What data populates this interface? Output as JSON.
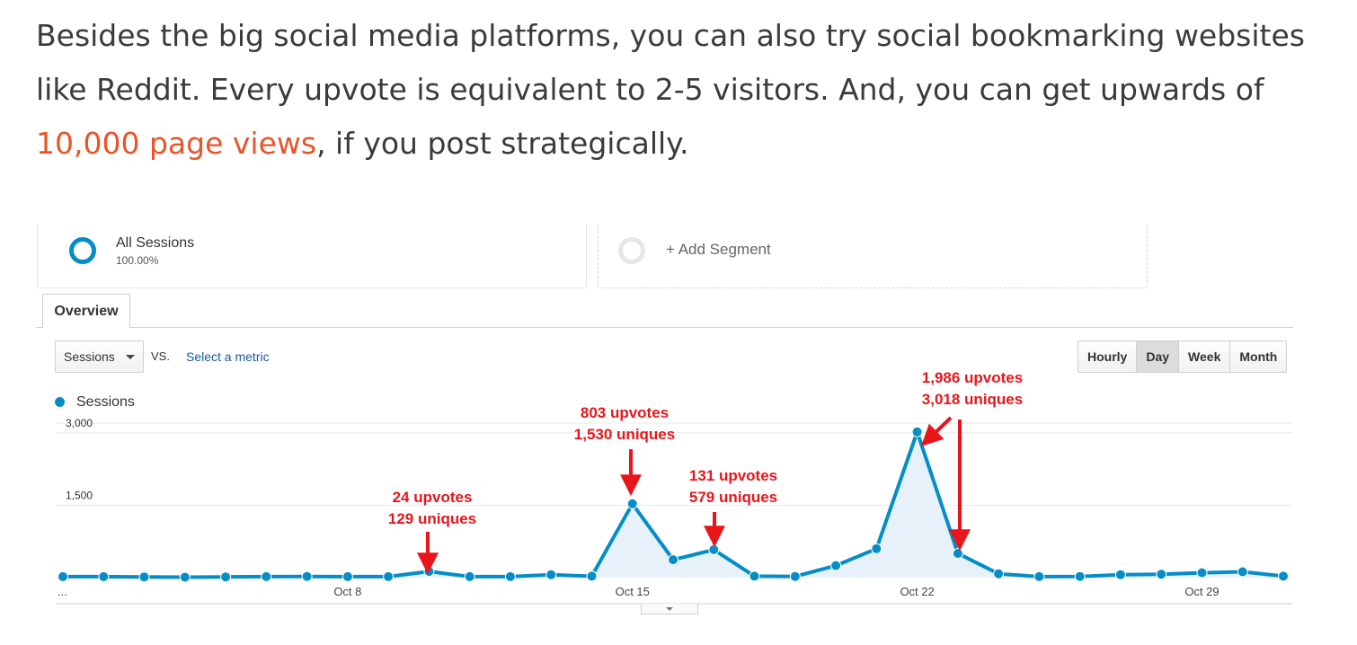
{
  "article": {
    "line1": "Besides the big social media platforms, you can also try social bookmarking websites",
    "line2": "like Reddit. Every upvote is equivalent to 2-5 visitors. And, you can get upwards of",
    "link_text": "10,000 page views",
    "line3_rest": ", if you post strategically."
  },
  "segments": {
    "primary_name": "All Sessions",
    "primary_pct": "100.00%",
    "add_label": "+ Add Segment"
  },
  "tabs": {
    "overview": "Overview"
  },
  "controls": {
    "metric": "Sessions",
    "vs": "VS.",
    "select_metric": "Select a metric",
    "time_buttons": [
      "Hourly",
      "Day",
      "Week",
      "Month"
    ],
    "active_time": "Day"
  },
  "colors": {
    "line": "#058dc7",
    "area": "#e6f1f9",
    "annotation": "#e8161b",
    "link": "#e8552b"
  },
  "chart_data": {
    "type": "line",
    "legend": "Sessions",
    "ylim": [
      0,
      3200
    ],
    "yticks": [
      3000,
      1500
    ],
    "ytick_labels": [
      "3,000",
      "1,500"
    ],
    "xtick_labels": [
      "...",
      "Oct 8",
      "Oct 15",
      "Oct 22",
      "Oct 29"
    ],
    "xtick_index": [
      0,
      7,
      14,
      21,
      28
    ],
    "grid": true,
    "series": [
      {
        "name": "Sessions",
        "values": [
          20,
          20,
          15,
          10,
          15,
          20,
          25,
          20,
          20,
          129,
          20,
          20,
          60,
          30,
          1530,
          370,
          579,
          30,
          25,
          250,
          600,
          3018,
          500,
          80,
          20,
          25,
          60,
          70,
          100,
          120,
          30
        ]
      }
    ],
    "annotations": [
      {
        "line1": "24 upvotes",
        "line2": "129 uniques",
        "index": 9
      },
      {
        "line1": "803 upvotes",
        "line2": "1,530 uniques",
        "index": 14
      },
      {
        "line1": "131 upvotes",
        "line2": "579 uniques",
        "index": 16
      },
      {
        "line1": "1,986 upvotes",
        "line2": "3,018 uniques",
        "index": 21
      }
    ]
  }
}
